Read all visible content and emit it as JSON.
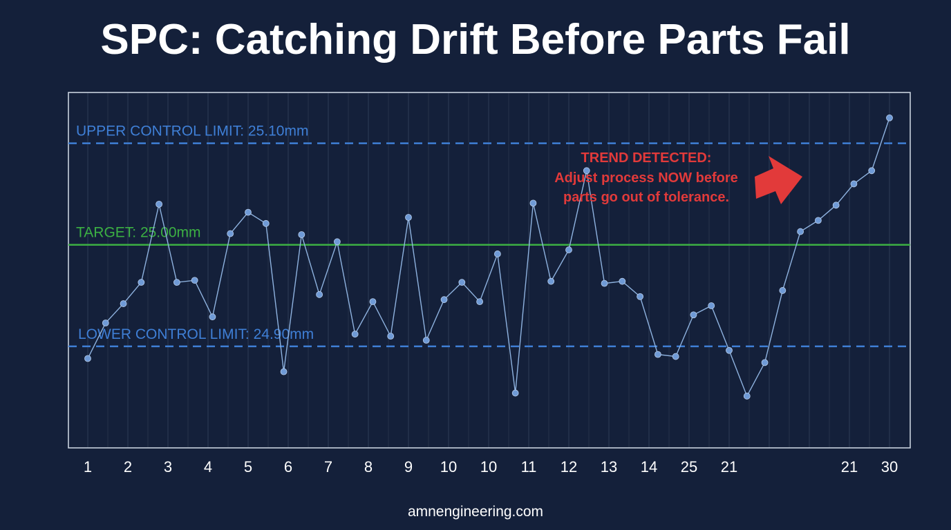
{
  "chart_data": {
    "type": "line",
    "title": "SPC: Catching Drift Before Parts Fail",
    "x_tick_labels": [
      "1",
      "2",
      "3",
      "4",
      "5",
      "6",
      "7",
      "8",
      "9",
      "10",
      "10",
      "11",
      "12",
      "13",
      "14",
      "25",
      "21",
      "",
      "",
      "21",
      "30"
    ],
    "values": [
      24.888,
      24.923,
      24.942,
      24.963,
      25.04,
      24.963,
      24.965,
      24.929,
      25.011,
      25.032,
      25.021,
      24.875,
      25.01,
      24.951,
      25.003,
      24.912,
      24.944,
      24.91,
      25.027,
      24.906,
      24.946,
      24.963,
      24.944,
      24.991,
      24.854,
      25.041,
      24.964,
      24.995,
      25.073,
      24.962,
      24.964,
      24.949,
      24.892,
      24.89,
      24.931,
      24.94,
      24.896,
      24.851,
      24.884,
      24.955,
      25.013,
      25.024,
      25.039,
      25.06,
      25.073,
      25.125
    ],
    "x_spacing_note": "",
    "ylim": [
      24.8,
      25.15
    ],
    "lines": {
      "ucl": {
        "value": 25.1,
        "label": "UPPER CONTROL LIMIT: 25.10mm",
        "color": "#3f7fd6"
      },
      "target": {
        "value": 25.0,
        "label": "TARGET: 25.00mm",
        "color": "#3cb043"
      },
      "lcl": {
        "value": 24.9,
        "label": "LOWER CONTROL LIMIT: 24.90mm",
        "color": "#3f7fd6"
      }
    },
    "annotation": {
      "lines": [
        "TREND DETECTED:",
        "Adjust process NOW before",
        "parts go out of tolerance."
      ],
      "color": "#e23a3a"
    },
    "grid": true,
    "series_color": "#8fb3e0",
    "marker_color": "#6f9ad6"
  },
  "footer": "amnengineering.com"
}
